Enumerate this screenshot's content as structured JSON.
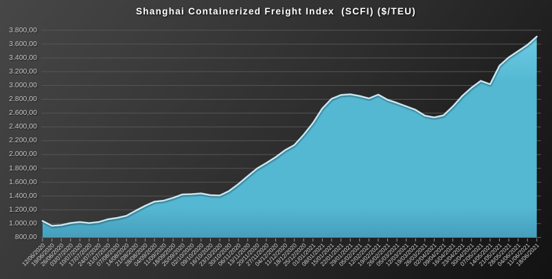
{
  "chart_data": {
    "type": "area",
    "title": "Shanghai Containerized Freight Index  (SCFI) ($/TEU)",
    "xlabel": "",
    "ylabel": "",
    "ylim": [
      800,
      3800
    ],
    "grid": true,
    "legend": "none",
    "categories": [
      "12/06/2020",
      "19/06/2020",
      "26/06/2020",
      "03/07/2020",
      "10/07/2020",
      "17/07/2020",
      "24/07/2020",
      "31/07/2020",
      "07/08/2020",
      "14/08/2020",
      "21/08/2020",
      "28/08/2020",
      "04/09/2020",
      "11/09/2020",
      "18/09/2020",
      "25/09/2020",
      "02/10/2020",
      "09/10/2020",
      "16/10/2020",
      "23/10/2020",
      "30/10/2020",
      "06/11/2020",
      "13/11/2020",
      "20/11/2020",
      "27/11/2020",
      "04/12/2020",
      "11/12/2020",
      "18/12/2020",
      "25/12/2020",
      "01/01/2021",
      "08/01/2021",
      "15/01/2021",
      "22/01/2021",
      "29/01/2021",
      "05/02/2021",
      "12/02/2021",
      "19/02/2021",
      "26/02/2021",
      "05/03/2021",
      "12/03/2021",
      "19/03/2021",
      "26/03/2021",
      "02/04/2021",
      "09/04/2021",
      "16/04/2021",
      "23/04/2021",
      "30/04/2021",
      "07/05/2021",
      "14/05/2021",
      "21/05/2021",
      "28/05/2021",
      "04/06/2021",
      "11/06/2021",
      "18/06/2021"
    ],
    "values": [
      1030,
      960,
      970,
      1000,
      1015,
      1000,
      1015,
      1055,
      1075,
      1105,
      1180,
      1250,
      1310,
      1325,
      1365,
      1415,
      1420,
      1430,
      1405,
      1400,
      1465,
      1565,
      1680,
      1790,
      1870,
      1955,
      2055,
      2130,
      2280,
      2450,
      2660,
      2800,
      2855,
      2865,
      2840,
      2805,
      2860,
      2785,
      2740,
      2690,
      2640,
      2555,
      2530,
      2560,
      2690,
      2840,
      2960,
      3060,
      3010,
      3280,
      3400,
      3490,
      3580,
      3700
    ],
    "y_ticks": [
      {
        "value": 3800,
        "label": "3.800,00"
      },
      {
        "value": 3600,
        "label": "3.600,00"
      },
      {
        "value": 3400,
        "label": "3.400,00"
      },
      {
        "value": 3200,
        "label": "3.200,00"
      },
      {
        "value": 3000,
        "label": "3.000,00"
      },
      {
        "value": 2800,
        "label": "2.800,00"
      },
      {
        "value": 2600,
        "label": "2.600,00"
      },
      {
        "value": 2400,
        "label": "2.400,00"
      },
      {
        "value": 2200,
        "label": "2.200,00"
      },
      {
        "value": 2000,
        "label": "2.000,00"
      },
      {
        "value": 1800,
        "label": "1.800,00"
      },
      {
        "value": 1600,
        "label": "1.600,00"
      },
      {
        "value": 1400,
        "label": "1.400,00"
      },
      {
        "value": 1200,
        "label": "1.200,00"
      },
      {
        "value": 1000,
        "label": "1.000,00"
      },
      {
        "value": 800,
        "label": "800,00"
      }
    ],
    "colors": {
      "area_fill": "#55b8d3",
      "area_fill_light": "#6ecbe3",
      "area_fill_dark": "#459fbd",
      "edge_highlight": "#d3f0fa",
      "gridline": "#56565a",
      "baseline": "#6a6a6e",
      "tick_mark": "#9a9a9a",
      "axis_text": "#c9c9c9",
      "title_text": "#ffffff"
    }
  }
}
